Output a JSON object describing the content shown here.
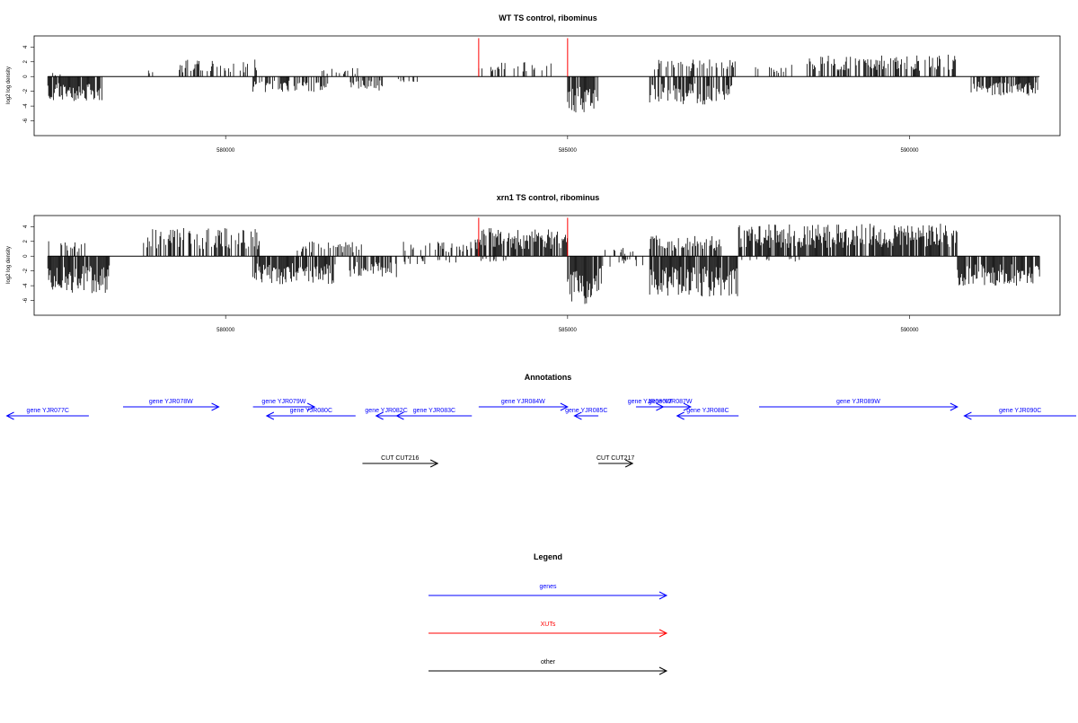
{
  "colors": {
    "gene": "#0000ff",
    "xut": "#ff0000",
    "other": "#000000",
    "bar": "#000000"
  },
  "chart_data": [
    {
      "type": "bar",
      "title": "WT TS control, ribominus",
      "ylabel": "log2 log density",
      "xlim": [
        577200,
        592200
      ],
      "ylim": [
        -8,
        5.5
      ],
      "yticks": [
        4,
        2,
        0,
        -2,
        -4,
        -6
      ],
      "xticks": [
        580000,
        585000,
        590000
      ],
      "xtick_labels": [
        "580000",
        "585000",
        "590000"
      ],
      "red_marks": [
        {
          "x": 583700,
          "y": 5.2
        },
        {
          "x": 585000,
          "y": 5.2
        }
      ],
      "regions": [
        {
          "start": 577400,
          "end": 578200,
          "sign": -1,
          "amp": 3.4,
          "density": 0.85
        },
        {
          "start": 577400,
          "end": 577650,
          "sign": 1,
          "amp": 0.5,
          "density": 0.15
        },
        {
          "start": 578800,
          "end": 579000,
          "sign": 1,
          "amp": 1.0,
          "density": 0.4
        },
        {
          "start": 579300,
          "end": 580500,
          "sign": 1,
          "amp": 2.3,
          "density": 0.35
        },
        {
          "start": 580400,
          "end": 581500,
          "sign": -1,
          "amp": 2.2,
          "density": 0.45
        },
        {
          "start": 581400,
          "end": 582000,
          "sign": 1,
          "amp": 1.2,
          "density": 0.2
        },
        {
          "start": 581800,
          "end": 582300,
          "sign": -1,
          "amp": 2.0,
          "density": 0.5
        },
        {
          "start": 582500,
          "end": 582800,
          "sign": -1,
          "amp": 0.8,
          "density": 0.2
        },
        {
          "start": 583700,
          "end": 584800,
          "sign": 1,
          "amp": 2.0,
          "density": 0.35
        },
        {
          "start": 585000,
          "end": 585450,
          "sign": -1,
          "amp": 5.2,
          "density": 0.9
        },
        {
          "start": 586200,
          "end": 587400,
          "sign": -1,
          "amp": 3.8,
          "density": 0.75
        },
        {
          "start": 586200,
          "end": 587500,
          "sign": 1,
          "amp": 2.4,
          "density": 0.3
        },
        {
          "start": 587700,
          "end": 588400,
          "sign": 1,
          "amp": 1.6,
          "density": 0.2
        },
        {
          "start": 588500,
          "end": 590700,
          "sign": 1,
          "amp": 3.0,
          "density": 0.5
        },
        {
          "start": 590900,
          "end": 591900,
          "sign": -1,
          "amp": 2.6,
          "density": 0.75
        }
      ]
    },
    {
      "type": "bar",
      "title": "xrn1 TS control, ribominus",
      "ylabel": "log2 log density",
      "xlim": [
        577200,
        592200
      ],
      "ylim": [
        -8,
        5.5
      ],
      "yticks": [
        4,
        2,
        0,
        -2,
        -4,
        -6
      ],
      "xticks": [
        580000,
        585000,
        590000
      ],
      "xtick_labels": [
        "580000",
        "585000",
        "590000"
      ],
      "red_marks": [
        {
          "x": 583700,
          "y": 5.2
        },
        {
          "x": 585000,
          "y": 5.2
        }
      ],
      "regions": [
        {
          "start": 577400,
          "end": 578000,
          "sign": 1,
          "amp": 2.4,
          "density": 0.3
        },
        {
          "start": 577400,
          "end": 578300,
          "sign": -1,
          "amp": 5.0,
          "density": 0.95
        },
        {
          "start": 578800,
          "end": 580500,
          "sign": 1,
          "amp": 3.8,
          "density": 0.55
        },
        {
          "start": 580400,
          "end": 581600,
          "sign": -1,
          "amp": 3.8,
          "density": 0.8
        },
        {
          "start": 581000,
          "end": 582000,
          "sign": 1,
          "amp": 2.0,
          "density": 0.25
        },
        {
          "start": 581800,
          "end": 582500,
          "sign": -1,
          "amp": 3.0,
          "density": 0.65
        },
        {
          "start": 582600,
          "end": 583600,
          "sign": 1,
          "amp": 2.0,
          "density": 0.3
        },
        {
          "start": 582600,
          "end": 583400,
          "sign": -1,
          "amp": 1.2,
          "density": 0.25
        },
        {
          "start": 583650,
          "end": 585000,
          "sign": 1,
          "amp": 3.8,
          "density": 0.85
        },
        {
          "start": 583700,
          "end": 584200,
          "sign": -1,
          "amp": 0.8,
          "density": 0.2
        },
        {
          "start": 585000,
          "end": 585500,
          "sign": -1,
          "amp": 6.5,
          "density": 0.95
        },
        {
          "start": 585500,
          "end": 586100,
          "sign": -1,
          "amp": 1.5,
          "density": 0.3
        },
        {
          "start": 585500,
          "end": 586000,
          "sign": 1,
          "amp": 1.2,
          "density": 0.2
        },
        {
          "start": 586200,
          "end": 587500,
          "sign": -1,
          "amp": 5.5,
          "density": 0.9
        },
        {
          "start": 586200,
          "end": 587300,
          "sign": 1,
          "amp": 2.8,
          "density": 0.6
        },
        {
          "start": 587500,
          "end": 590700,
          "sign": 1,
          "amp": 4.4,
          "density": 0.85
        },
        {
          "start": 587500,
          "end": 588400,
          "sign": -1,
          "amp": 0.8,
          "density": 0.15
        },
        {
          "start": 590700,
          "end": 591900,
          "sign": -1,
          "amp": 4.0,
          "density": 0.9
        }
      ]
    }
  ],
  "annotations": {
    "title": "Annotations",
    "xlim": [
      577200,
      592200
    ],
    "features": [
      {
        "label": "gene YJR077C",
        "start": 578000,
        "end": 576800,
        "row": 1,
        "kind": "gene"
      },
      {
        "label": "gene YJR078W",
        "start": 578500,
        "end": 579900,
        "row": 0,
        "kind": "gene"
      },
      {
        "label": "gene YJR079W",
        "start": 580400,
        "end": 581300,
        "row": 0,
        "kind": "gene"
      },
      {
        "label": "gene YJR080C",
        "start": 581900,
        "end": 580600,
        "row": 1,
        "kind": "gene"
      },
      {
        "label": "gene YJR082C",
        "start": 582500,
        "end": 582200,
        "row": 1,
        "kind": "gene"
      },
      {
        "label": "gene YJR083C",
        "start": 583600,
        "end": 582500,
        "row": 1,
        "kind": "gene"
      },
      {
        "label": "gene YJR084W",
        "start": 583700,
        "end": 585000,
        "row": 0,
        "kind": "gene"
      },
      {
        "label": "gene YJR085C",
        "start": 585450,
        "end": 585100,
        "row": 1,
        "kind": "gene"
      },
      {
        "label": "gene YJR086W",
        "start": 586000,
        "end": 586400,
        "row": 0,
        "kind": "gene"
      },
      {
        "label": "gene YJR087W",
        "start": 586200,
        "end": 586800,
        "row": 0,
        "kind": "gene"
      },
      {
        "label": "gene YJR088C",
        "start": 587500,
        "end": 586600,
        "row": 1,
        "kind": "gene"
      },
      {
        "label": "gene YJR089W",
        "start": 587800,
        "end": 590700,
        "row": 0,
        "kind": "gene"
      },
      {
        "label": "gene YJR090C",
        "start": 593000,
        "end": 590800,
        "row": 1,
        "kind": "gene"
      },
      {
        "label": "CUT CUT216",
        "start": 582000,
        "end": 583100,
        "row": 2,
        "kind": "other"
      },
      {
        "label": "CUT CUT217",
        "start": 585450,
        "end": 585950,
        "row": 2,
        "kind": "other"
      }
    ]
  },
  "legend": {
    "title": "Legend",
    "items": [
      {
        "label": "genes",
        "kind": "gene"
      },
      {
        "label": "XUTs",
        "kind": "xut"
      },
      {
        "label": "other",
        "kind": "other"
      }
    ]
  }
}
